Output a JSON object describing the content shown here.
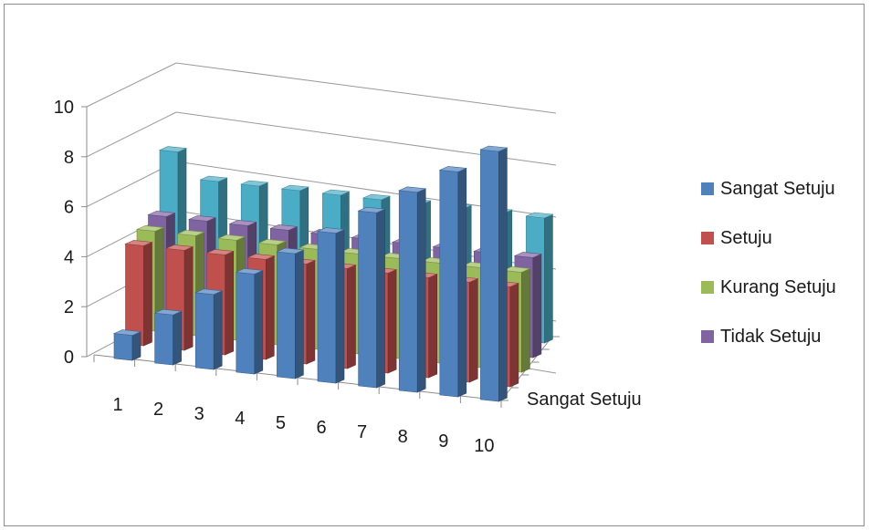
{
  "chart_data": {
    "type": "bar",
    "subtype": "3d-clustered-column",
    "categories": [
      "1",
      "2",
      "3",
      "4",
      "5",
      "6",
      "7",
      "8",
      "9",
      "10"
    ],
    "series": [
      {
        "name": "Sangat Setuju",
        "color": "#4f81bd",
        "values": [
          1,
          2,
          3,
          4,
          5,
          6,
          7,
          8,
          9,
          10
        ]
      },
      {
        "name": "Setuju",
        "color": "#c0504d",
        "values": [
          4,
          4,
          4,
          4,
          4,
          4,
          4,
          4,
          4,
          4
        ]
      },
      {
        "name": "Kurang Setuju",
        "color": "#9bbb59",
        "values": [
          4,
          4,
          4,
          4,
          4,
          4,
          4,
          4,
          4,
          4
        ]
      },
      {
        "name": "Tidak Setuju",
        "color": "#8064a2",
        "values": [
          4,
          4,
          4,
          4,
          4,
          4,
          4,
          4,
          4,
          4
        ]
      },
      {
        "name": "",
        "color": "#4bacc6",
        "values": [
          6,
          5,
          5,
          5,
          5,
          5,
          5,
          5,
          5,
          5
        ]
      }
    ],
    "y_ticks": [
      "0",
      "2",
      "4",
      "6",
      "8",
      "10"
    ],
    "ylim": [
      0,
      10
    ],
    "depth_axis_label": "Sangat Setuju",
    "legend_items": [
      "Sangat Setuju",
      "Setuju",
      "Kurang Setuju",
      "Tidak Setuju"
    ],
    "legend_position": "right",
    "grid": true,
    "title": "",
    "xlabel": "",
    "ylabel": ""
  }
}
